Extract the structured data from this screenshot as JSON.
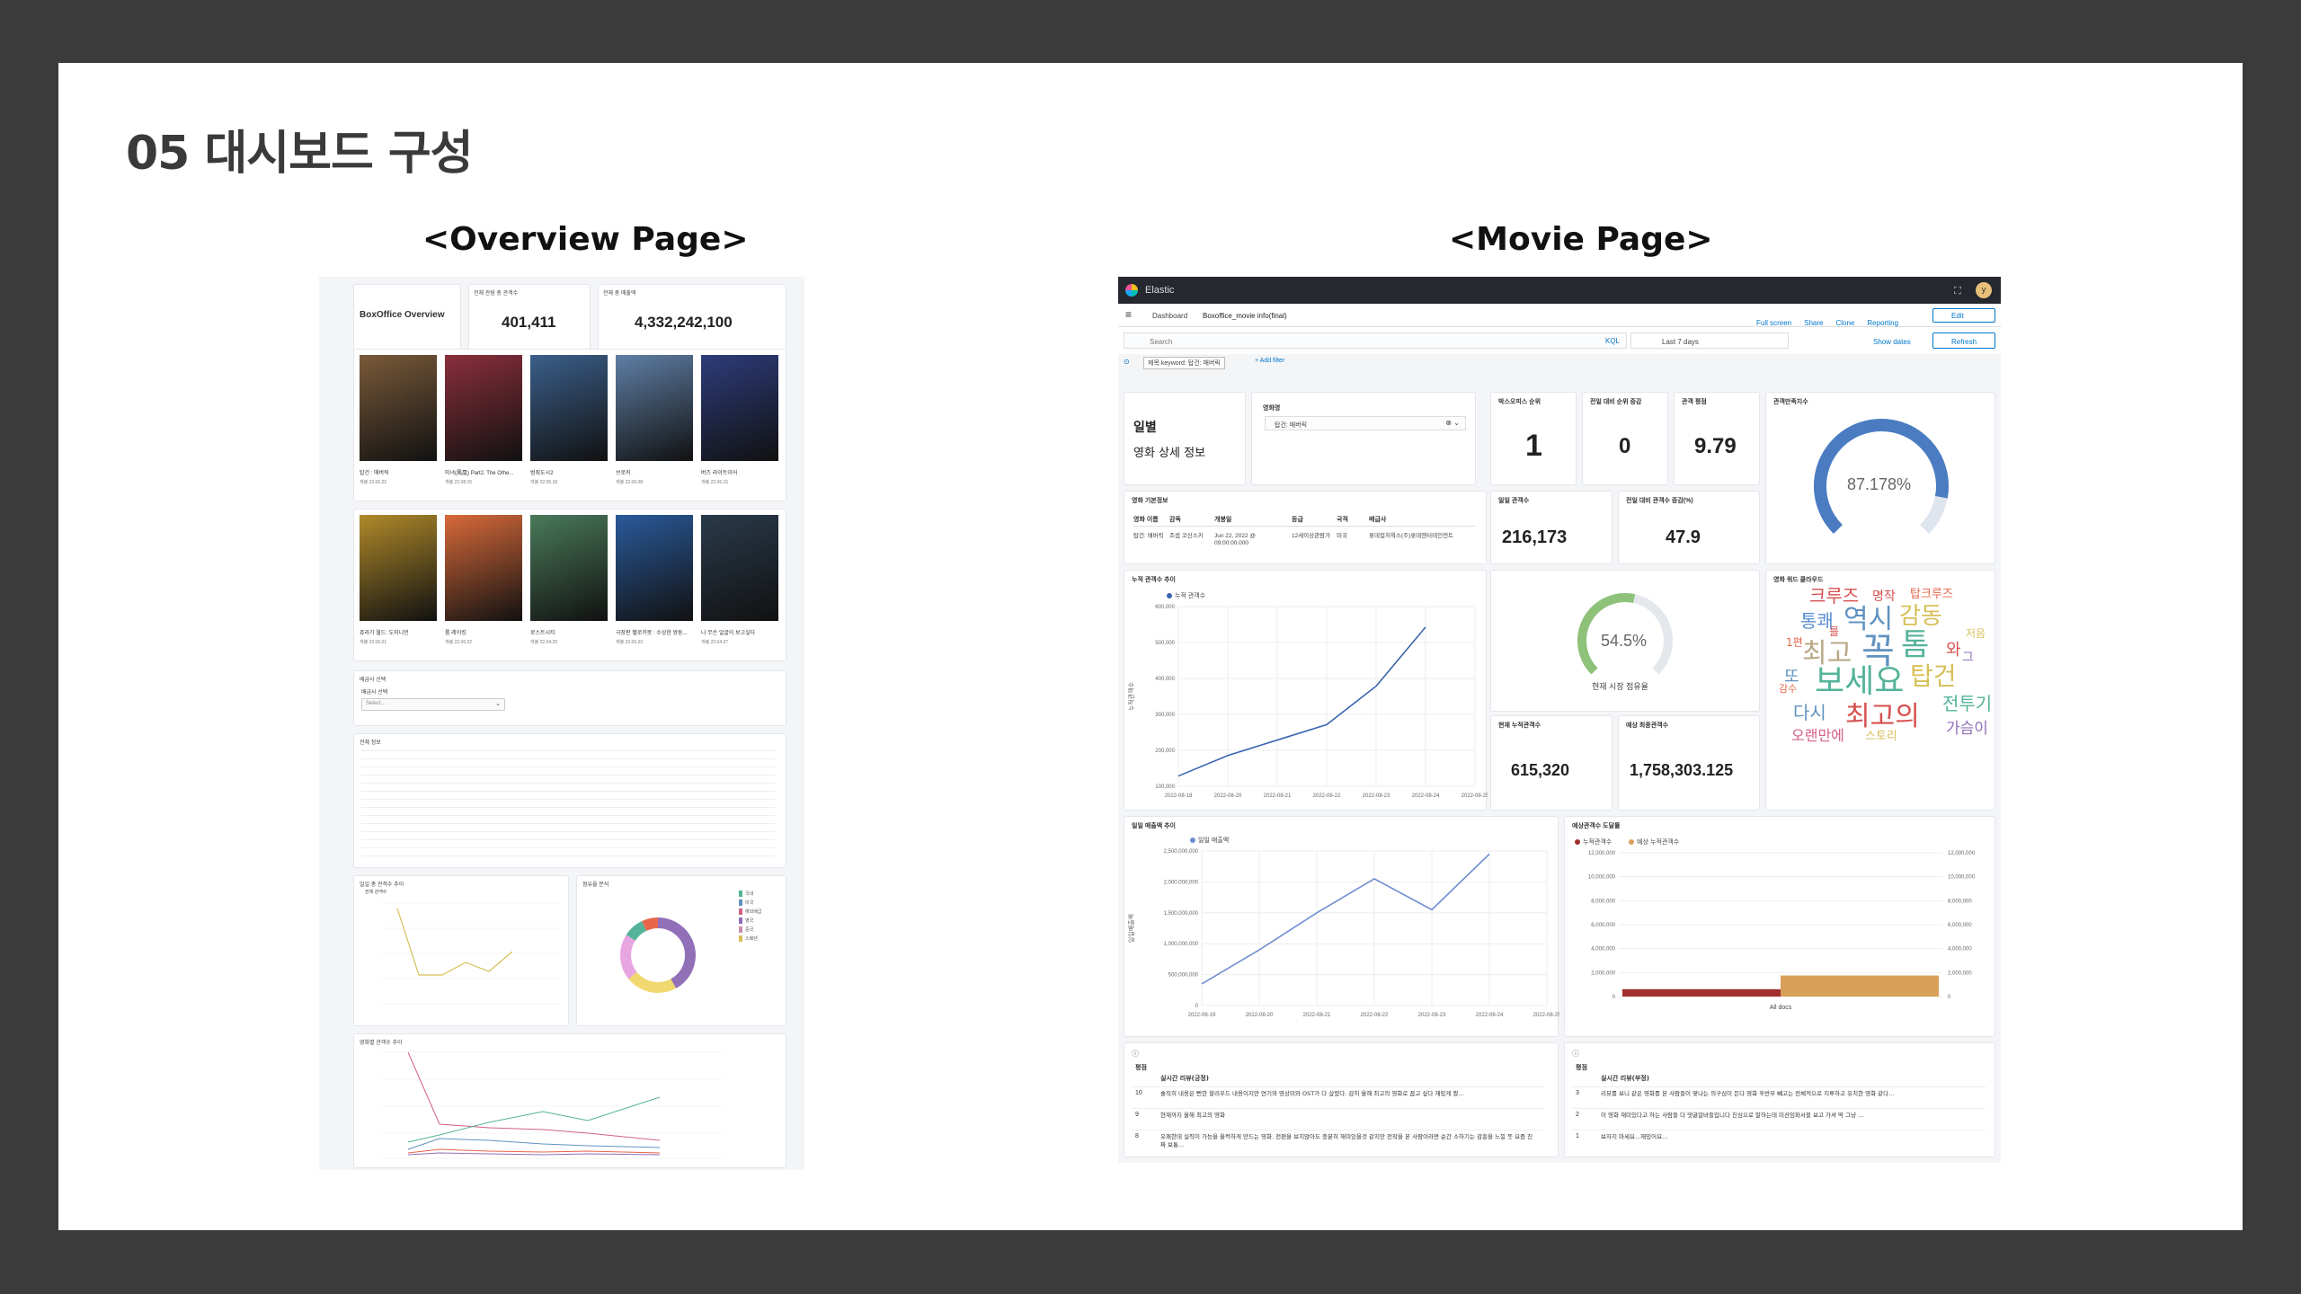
{
  "slide": {
    "title": "05 대시보드 구성",
    "overview_heading": "<Overview Page>",
    "movie_heading": "<Movie Page>"
  },
  "overview": {
    "header_title": "BoxOffice Overview",
    "metric1_label": "전체 관람 총 관객수",
    "metric1_value": "401,411",
    "metric2_label": "전체 총 매출액",
    "metric2_value": "4,332,242,100",
    "row1_movies": [
      {
        "title": "탑건 : 매버릭",
        "date": "개봉 22.06.22",
        "color": "#7a5a3a"
      },
      {
        "title": "미녀(鳳凰) Part2. The Othe...",
        "date": "개봉 22.08.15",
        "color": "#8a2f3c"
      },
      {
        "title": "범죄도시2",
        "date": "개봉 22.05.18",
        "color": "#3b5f8a"
      },
      {
        "title": "브로커",
        "date": "개봉 22.06.08",
        "color": "#5f7fa5"
      },
      {
        "title": "버즈 라이트이어",
        "date": "개봉 22.06.15",
        "color": "#2d3c7a"
      }
    ],
    "row2_movies": [
      {
        "title": "쥬라기 월드: 도미니언",
        "date": "개봉 22.06.01",
        "color": "#b08a2a"
      },
      {
        "title": "룸 레이킹",
        "date": "개봉 22.06.22",
        "color": "#d86a3a"
      },
      {
        "title": "로스트시티",
        "date": "개봉 22.04.20",
        "color": "#4a7a5a"
      },
      {
        "title": "극장판 헬로카봇 : 수상한 쌍둥...",
        "date": "개봉 22.06.23",
        "color": "#2a5a9a"
      },
      {
        "title": "나 무슨 얼굴이 보고싶다",
        "date": "개봉 22.04.27",
        "color": "#2a3a4a"
      }
    ],
    "select_label": "배급사 선택",
    "select_sub": "배급사 선택",
    "select_placeholder": "Select...",
    "table_label": "전체 정보",
    "chart1_label": "일일 총 관객수 추이",
    "chart1_legend": "전체 관객수",
    "chart2_label": "점유율 분석",
    "chart3_label": "영화별 관객수 추이",
    "donut_legend": [
      "국내",
      "미국",
      "해외배급",
      "영국",
      "중국",
      "스웨덴"
    ]
  },
  "movie": {
    "brand": "Elastic",
    "breadcrumb1": "Dashboard",
    "breadcrumb2": "Boxoffice_movie info(final)",
    "actions": [
      "Full screen",
      "Share",
      "Clone",
      "Reporting"
    ],
    "edit_label": "Edit",
    "search_placeholder": "Search",
    "kql": "KQL",
    "time_range": "Last 7 days",
    "show_dates": "Show dates",
    "refresh_label": "Refresh",
    "filter_pill": "제목.keyword: 탑건: 매버릭",
    "add_filter": "+ Add filter",
    "daily_title": "일별",
    "detail_title": "영화 상세 정보",
    "movie_select_label": "영화명",
    "movie_select_value": "탑건: 매버릭",
    "rank_label": "박스오피스 순위",
    "rank_value": "1",
    "rank_change_label": "전일 대비 순위 증감",
    "rank_change_value": "0",
    "rating_label": "관객 평점",
    "rating_value": "9.79",
    "gauge_label": "관객만족지수",
    "gauge_value": "87.178%",
    "gauge_fraction": 0.87178,
    "info_label": "영화 기본정보",
    "info_headers": [
      "영화 이름",
      "감독",
      "개봉일",
      "등급",
      "국적",
      "배급사"
    ],
    "info_values": [
      "탑건: 매버릭",
      "조셉 코신스키",
      "Jun 22, 2022 @ 09:00:00.000",
      "12세이상관람가",
      "미국",
      "롯데컬처웍스(주)롯데엔터테인먼트"
    ],
    "daily_aud_label": "일일 관객수",
    "daily_aud_value": "216,173",
    "aud_change_label": "전일 대비 관객수 증감(%)",
    "aud_change_value": "47.9",
    "cum_chart_label": "누적 관객수 추이",
    "cum_legend": "누적 관객수",
    "share_gauge_value": "54.5%",
    "share_gauge_fraction": 0.545,
    "share_caption": "현재 시장 점유율",
    "wordcloud_label": "영화 워드 클라우드",
    "cum_aud_label": "현재 누적관객수",
    "cum_aud_value": "615,320",
    "pred_label": "예상 최종관객수",
    "pred_value": "1,758,303.125",
    "sales_chart_label": "일일 매출액 추이",
    "sales_legend": "일일 매출액",
    "pred_chart_label": "예상관객수 도달률",
    "pred_legend": [
      "누적관객수",
      "예상 누적관객수"
    ],
    "pred_xlabel": "All docs",
    "reviews_left_header": [
      "평점",
      "실시간 리뷰(긍정)"
    ],
    "reviews_right_header": [
      "평점",
      "실시간 리뷰(부정)"
    ],
    "reviews_left": [
      {
        "score": "10",
        "text": "솔직히 내용은 뻔한 할리우드 내용이지만 연기와 영상미와 OST가 다 살렸다. 감히 올해 최고의 영화로 꼽고 싶다 재밌게 봤..."
      },
      {
        "score": "9",
        "text": "현재까지 올해 최고의 영화"
      },
      {
        "score": "8",
        "text": "유쾌한데 실력이 가능을 울컥하게 만드는 영화. 전편을 보지않아도 충분히 재미있을것 같지만 전작을 본 사람이라면 순간 소하기는 감흥을 느낄 듯 요즘 진짜 보통..."
      }
    ],
    "reviews_right": [
      {
        "score": "3",
        "text": "리뷰를 보니 같은 영화를 본 사람들이 맞나는 의구심이 든다 영화 후반부 빼고는 전체적으로 지루하고 유치한 영화 같다..."
      },
      {
        "score": "2",
        "text": "이 영화 재미있다고 하는 사람들 다 댓글알바들입니다 진심으로 말하는데 미션임파서블 보고 가셔 딱 그냥 ..."
      },
      {
        "score": "1",
        "text": "보자지 마세요...재밌어요..."
      }
    ],
    "wordcloud": [
      {
        "text": "크루즈",
        "color": "#d6504f",
        "size": 20
      },
      {
        "text": "명작",
        "color": "#d6504f",
        "size": 14
      },
      {
        "text": "탑크루즈",
        "color": "#e7664c",
        "size": 13
      },
      {
        "text": "통쾌",
        "color": "#5a8fd1",
        "size": 20
      },
      {
        "text": "역시",
        "color": "#6092c0",
        "size": 30
      },
      {
        "text": "감동",
        "color": "#d6bf57",
        "size": 26
      },
      {
        "text": "최고",
        "color": "#b9a888",
        "size": 30
      },
      {
        "text": "꼭",
        "color": "#6092c0",
        "size": 40
      },
      {
        "text": "톰",
        "color": "#54b399",
        "size": 34
      },
      {
        "text": "와",
        "color": "#d6504f",
        "size": 18
      },
      {
        "text": "저음",
        "color": "#d6bf57",
        "size": 12
      },
      {
        "text": "1편",
        "color": "#e7664c",
        "size": 12
      },
      {
        "text": "탑건",
        "color": "#d6bf57",
        "size": 28
      },
      {
        "text": "또",
        "color": "#6092c0",
        "size": 18
      },
      {
        "text": "보세요",
        "color": "#54b399",
        "size": 36
      },
      {
        "text": "다시",
        "color": "#6092c0",
        "size": 20
      },
      {
        "text": "최고의",
        "color": "#d6504f",
        "size": 30
      },
      {
        "text": "전투기",
        "color": "#54b399",
        "size": 20
      },
      {
        "text": "가슴이",
        "color": "#9170b8",
        "size": 17
      },
      {
        "text": "오랜만에",
        "color": "#d36086",
        "size": 16
      },
      {
        "text": "스토리",
        "color": "#d6bf57",
        "size": 13
      },
      {
        "text": "감수",
        "color": "#e7664c",
        "size": 11
      },
      {
        "text": "그",
        "color": "#9170b8",
        "size": 14
      },
      {
        "text": "를",
        "color": "#d6504f",
        "size": 12
      }
    ]
  },
  "chart_data": [
    {
      "type": "line",
      "title": "누적 관객수 추이",
      "x": [
        "2022-08-18",
        "2022-08-20",
        "2022-08-21",
        "2022-08-22",
        "2022-08-23",
        "2022-08-24",
        "2022-08-25"
      ],
      "series": [
        {
          "name": "누적 관객수",
          "values": [
            40000,
            120000,
            180000,
            240000,
            390000,
            620000,
            null
          ]
        }
      ],
      "ylabel": "누적관객수",
      "ylim": [
        0,
        700000
      ],
      "yticks": [
        "100,000",
        "200,000",
        "300,000",
        "400,000",
        "500,000",
        "600,000"
      ]
    },
    {
      "type": "line",
      "title": "일일 매출액 추이",
      "x": [
        "2022-08-19",
        "2022-08-20",
        "2022-08-21",
        "2022-08-22",
        "2022-08-23",
        "2022-08-24",
        "2022-08-25"
      ],
      "series": [
        {
          "name": "일일 매출액",
          "values": [
            350000000,
            900000000,
            1500000000,
            2050000000,
            1550000000,
            2450000000,
            null
          ]
        }
      ],
      "ylabel": "일일매출액",
      "ylim": [
        0,
        2500000000
      ],
      "yticks": [
        "0",
        "500,000,000",
        "1,000,000,000",
        "1,500,000,000",
        "2,000,000,000",
        "2,500,000,000"
      ]
    },
    {
      "type": "bar",
      "title": "예상관객수 도달률",
      "categories": [
        "All docs"
      ],
      "series": [
        {
          "name": "누적관객수",
          "values": [
            615320
          ]
        },
        {
          "name": "예상 누적관객수",
          "values": [
            1758303
          ]
        }
      ],
      "ylim": [
        0,
        12000000
      ]
    }
  ]
}
